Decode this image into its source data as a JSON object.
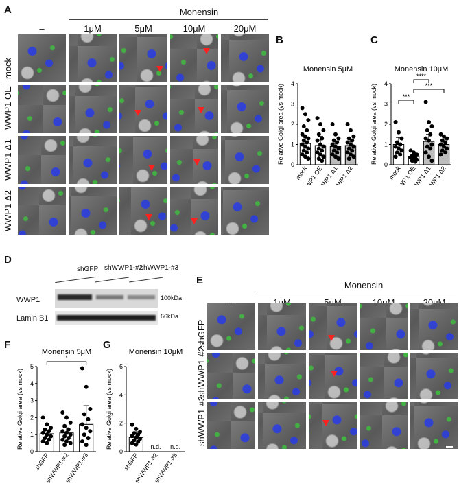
{
  "panelA": {
    "label": "A",
    "treatment_header": "Monensin",
    "columns": [
      "–",
      "1μM",
      "5μM",
      "10μM",
      "20μM"
    ],
    "rows": [
      "mock",
      "WWP1 OE",
      "WWP1 Δ1",
      "WWP1 Δ2"
    ]
  },
  "panelB": {
    "label": "B",
    "title": "Monensin 5μM",
    "ylabel": "Relative Golgi area (vs mock)",
    "yticks": [
      "0",
      "1",
      "2",
      "3",
      "4"
    ],
    "categories": [
      "mock",
      "WWP1 OE",
      "WWP1 Δ1",
      "WWP1 Δ2"
    ]
  },
  "panelC": {
    "label": "C",
    "title": "Monensin 10μM",
    "ylabel": "Relative Golgi area (vs mock)",
    "yticks": [
      "0",
      "1",
      "2",
      "3",
      "4"
    ],
    "categories": [
      "mock",
      "WWP1 OE",
      "WWP1 Δ1",
      "WWP1 Δ2"
    ],
    "sig": [
      "***",
      "****",
      "***"
    ]
  },
  "panelD": {
    "label": "D",
    "groups": [
      "shGFP",
      "shWWP1-#2",
      "shWWP1-#3"
    ],
    "bands": [
      "WWP1",
      "Lamin B1"
    ],
    "markers": [
      "100kDa",
      "66kDa"
    ]
  },
  "panelE": {
    "label": "E",
    "treatment_header": "Monensin",
    "columns": [
      "–",
      "1μM",
      "5μM",
      "10μM",
      "20μM"
    ],
    "rows": [
      "shGFP",
      "shWWP1-#2",
      "shWWP1-#3"
    ]
  },
  "panelF": {
    "label": "F",
    "title": "Monensin 5μM",
    "ylabel": "Relative Golgi area (vs mock)",
    "yticks": [
      "0",
      "1",
      "2",
      "3",
      "4",
      "5"
    ],
    "categories": [
      "shGFP",
      "shWWP1-#2",
      "shWWP1-#3"
    ],
    "sig": "*"
  },
  "panelG": {
    "label": "G",
    "title": "Monensin 10μM",
    "ylabel": "Relative Golgi area (vs mock)",
    "yticks": [
      "0",
      "2",
      "4",
      "6"
    ],
    "categories": [
      "shGFP",
      "shWWP1-#2",
      "shWWP1-#3"
    ],
    "nd": [
      "n.d.",
      "n.d."
    ]
  },
  "chart_data": [
    {
      "type": "bar",
      "title": "Monensin 5μM",
      "ylabel": "Relative Golgi area (vs mock)",
      "categories": [
        "mock",
        "WWP1 OE",
        "WWP1 Δ1",
        "WWP1 Δ2"
      ],
      "values": [
        1.05,
        0.95,
        0.9,
        0.95
      ],
      "errors": [
        0.3,
        0.45,
        0.15,
        0.2
      ],
      "ylim": [
        0,
        4
      ],
      "bar_colors": [
        "#ffffff",
        "#ffffff",
        "#bdbdbd",
        "#bdbdbd"
      ],
      "points": [
        [
          2.8,
          2.5,
          2.2,
          1.9,
          1.7,
          1.5,
          1.4,
          1.3,
          1.2,
          1.1,
          1.0,
          0.9,
          0.8,
          0.7,
          0.6,
          0.5,
          0.4,
          0.3
        ],
        [
          2.3,
          2.0,
          1.7,
          1.5,
          1.3,
          1.2,
          1.0,
          0.9,
          0.8,
          0.7,
          0.6,
          0.5,
          0.4,
          0.3,
          0.2
        ],
        [
          2.0,
          1.5,
          1.3,
          1.2,
          1.1,
          1.0,
          0.9,
          0.8,
          0.7,
          0.6,
          0.5,
          0.4,
          0.3
        ],
        [
          2.0,
          1.7,
          1.4,
          1.3,
          1.2,
          1.1,
          1.0,
          0.9,
          0.8,
          0.7,
          0.6,
          0.5,
          0.4,
          0.3
        ]
      ]
    },
    {
      "type": "bar",
      "title": "Monensin 10μM",
      "ylabel": "Relative Golgi area (vs mock)",
      "categories": [
        "mock",
        "WWP1 OE",
        "WWP1 Δ1",
        "WWP1 Δ2"
      ],
      "values": [
        1.0,
        0.4,
        1.15,
        1.0
      ],
      "errors": [
        0.35,
        0.1,
        0.35,
        0.15
      ],
      "ylim": [
        0,
        4
      ],
      "bar_colors": [
        "#ffffff",
        "#ffffff",
        "#bdbdbd",
        "#bdbdbd"
      ],
      "points": [
        [
          2.1,
          1.6,
          1.3,
          1.1,
          1.0,
          0.9,
          0.8,
          0.7,
          0.6,
          0.5,
          0.4
        ],
        [
          0.7,
          0.6,
          0.5,
          0.45,
          0.4,
          0.35,
          0.3,
          0.25,
          0.2,
          0.15
        ],
        [
          3.1,
          2.1,
          1.9,
          1.7,
          1.5,
          1.3,
          1.2,
          1.0,
          0.9,
          0.8,
          0.6,
          0.4,
          0.2
        ],
        [
          1.5,
          1.4,
          1.3,
          1.2,
          1.1,
          1.0,
          0.9,
          0.8,
          0.7,
          0.6,
          0.5
        ]
      ]
    },
    {
      "type": "bar",
      "title": "Monensin 5μM",
      "ylabel": "Relative Golgi area (vs mock)",
      "categories": [
        "shGFP",
        "shWWP1-#2",
        "shWWP1-#3"
      ],
      "values": [
        1.05,
        1.1,
        1.6
      ],
      "errors": [
        0.2,
        0.3,
        1.1
      ],
      "ylim": [
        0,
        5
      ],
      "bar_colors": [
        "#ffffff",
        "#ffffff",
        "#ffffff"
      ],
      "points": [
        [
          2.0,
          1.6,
          1.4,
          1.3,
          1.2,
          1.1,
          1.0,
          0.9,
          0.8,
          0.7,
          0.6,
          0.5
        ],
        [
          2.3,
          2.0,
          1.7,
          1.5,
          1.3,
          1.2,
          1.1,
          1.0,
          0.9,
          0.8,
          0.7,
          0.6,
          0.5,
          0.4
        ],
        [
          4.9,
          3.8,
          2.5,
          2.2,
          1.9,
          1.6,
          1.4,
          1.2,
          1.0,
          0.8,
          0.6,
          0.4
        ]
      ]
    },
    {
      "type": "bar",
      "title": "Monensin 10μM",
      "ylabel": "Relative Golgi area (vs mock)",
      "categories": [
        "shGFP",
        "shWWP1-#2",
        "shWWP1-#3"
      ],
      "values": [
        1.0,
        0,
        0
      ],
      "errors": [
        0.4,
        0,
        0
      ],
      "ylim": [
        0,
        6
      ],
      "bar_colors": [
        "#ffffff",
        "#ffffff",
        "#ffffff"
      ],
      "points": [
        [
          1.9,
          1.6,
          1.4,
          1.3,
          1.2,
          1.1,
          1.0,
          0.9,
          0.8,
          0.7,
          0.6,
          0.5
        ],
        [],
        []
      ]
    }
  ]
}
